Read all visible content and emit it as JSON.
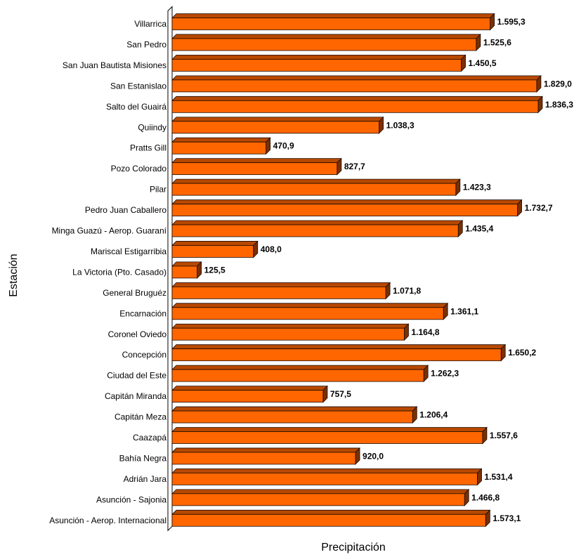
{
  "chart_data": {
    "type": "bar",
    "orientation": "horizontal",
    "style": "3d",
    "title": "",
    "xlabel": "Precipitación",
    "ylabel": "Estación",
    "xlim": [
      0,
      2000
    ],
    "grid": false,
    "legend": "none",
    "categories": [
      "Villarrica",
      "San Pedro",
      "San Juan Bautista Misiones",
      "San Estanislao",
      "Salto del Guairá",
      "Quiindy",
      "Pratts Gill",
      "Pozo Colorado",
      "Pilar",
      "Pedro Juan Caballero",
      "Minga Guazú - Aerop. Guaraní",
      "Mariscal Estigarribia",
      "La Victoria (Pto. Casado)",
      "General Bruguéz",
      "Encarnación",
      "Coronel Oviedo",
      "Concepción",
      "Ciudad del Este",
      "Capitán Miranda",
      "Capitán Meza",
      "Caazapá",
      "Bahía Negra",
      "Adrián Jara",
      "Asunción - Sajonia",
      "Asunción - Aerop. Internacional"
    ],
    "values": [
      1595.3,
      1525.6,
      1450.5,
      1829.0,
      1836.3,
      1038.3,
      470.9,
      827.7,
      1423.3,
      1732.7,
      1435.4,
      408.0,
      125.5,
      1071.8,
      1361.1,
      1164.8,
      1650.2,
      1262.3,
      757.5,
      1206.4,
      1557.6,
      920.0,
      1531.4,
      1466.8,
      1573.1
    ],
    "value_labels": [
      "1.595,3",
      "1.525,6",
      "1.450,5",
      "1.829,0",
      "1.836,3",
      "1.038,3",
      "470,9",
      "827,7",
      "1.423,3",
      "1.732,7",
      "1.435,4",
      "408,0",
      "125,5",
      "1.071,8",
      "1.361,1",
      "1.164,8",
      "1.650,2",
      "1.262,3",
      "757,5",
      "1.206,4",
      "1.557,6",
      "920,0",
      "1.531,4",
      "1.466,8",
      "1.573,1"
    ],
    "colors": {
      "bar_front": "#FF6600",
      "bar_top": "#B84800",
      "bar_side": "#7A3000",
      "bar_stroke": "#1A0A00",
      "axis": "#000000"
    }
  }
}
